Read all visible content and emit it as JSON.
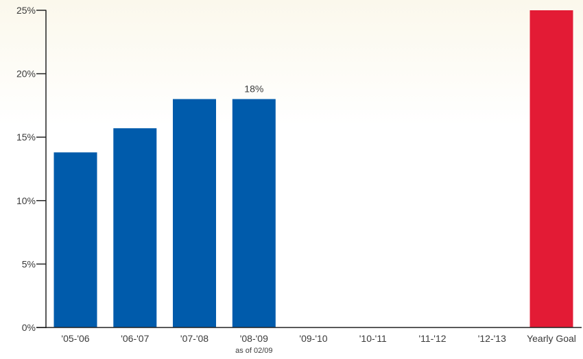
{
  "chart_data": {
    "type": "bar",
    "categories": [
      "'05-'06",
      "'06-'07",
      "'07-'08",
      "'08-'09",
      "'09-'10",
      "'10-'11",
      "'11-'12",
      "'12-'13",
      "Yearly Goal"
    ],
    "category_sublabels": [
      "",
      "",
      "",
      "as of 02/09",
      "",
      "",
      "",
      "",
      ""
    ],
    "values": [
      13.8,
      15.7,
      18,
      18,
      null,
      null,
      null,
      null,
      25
    ],
    "value_labels": [
      "",
      "",
      "",
      "18%",
      "",
      "",
      "",
      "",
      ""
    ],
    "ylim": [
      0,
      25
    ],
    "yticks": [
      0,
      5,
      10,
      15,
      20,
      25
    ],
    "ytick_labels": [
      "0%",
      "5%",
      "10%",
      "15%",
      "20%",
      "25%"
    ],
    "grid": false,
    "colors": {
      "bar": "#005BAB",
      "goal_bar": "#E31B35",
      "axis": "#222222",
      "background_top": "#FBF8EC",
      "background_bottom": "#FFFFFF"
    },
    "title": "",
    "xlabel": "",
    "ylabel": ""
  }
}
